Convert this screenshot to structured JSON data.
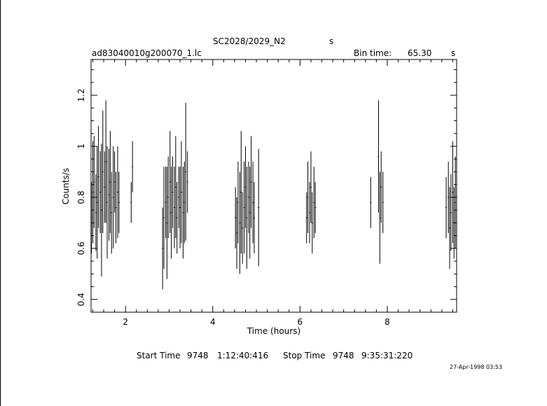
{
  "header": {
    "target_name": "SC2028/2029_N2",
    "target_unit": "s",
    "file_name": "ad83040010g200070_1.lc",
    "bin_time_label": "Bin time:",
    "bin_time_value": "65.30",
    "bin_time_unit": "s"
  },
  "footer": {
    "start_label": "Start Time",
    "start_day": "9748",
    "start_time": "1:12:40:416",
    "stop_label": "Stop Time",
    "stop_day": "9748",
    "stop_time": "9:35:31:220",
    "date_stamp": "27-Apr-1998 03:53"
  },
  "chart_data": {
    "type": "scatter",
    "xlabel": "Time (hours)",
    "ylabel": "Counts/s",
    "xlim": [
      1.21,
      9.59
    ],
    "ylim": [
      0.35,
      1.34
    ],
    "xticks": [
      2,
      4,
      6,
      8
    ],
    "yticks": [
      0.4,
      0.6,
      0.8,
      1,
      1.2
    ],
    "series": [
      {
        "x": [
          1.22,
          1.25,
          1.28,
          1.32,
          1.35,
          1.38,
          1.42,
          1.45,
          1.48,
          1.52,
          1.55,
          1.58,
          1.62,
          1.65,
          1.68,
          1.72,
          1.75,
          1.78,
          1.82,
          1.85,
          2.13,
          2.16,
          2.85,
          2.88,
          2.92,
          2.95,
          2.98,
          3.02,
          3.05,
          3.08,
          3.12,
          3.15,
          3.18,
          3.22,
          3.25,
          3.28,
          3.32,
          3.35,
          3.38,
          3.42,
          4.52,
          4.55,
          4.58,
          4.62,
          4.65,
          4.68,
          4.72,
          4.75,
          4.78,
          4.82,
          4.85,
          4.88,
          4.92,
          4.95,
          5.05,
          6.15,
          6.18,
          6.22,
          6.25,
          6.28,
          6.32,
          6.35,
          7.62,
          7.8,
          7.83,
          7.86,
          7.9,
          9.35,
          9.4,
          9.43,
          9.46,
          9.5,
          9.53,
          9.56
        ],
        "y": [
          0.72,
          0.82,
          0.86,
          0.74,
          0.78,
          0.88,
          0.82,
          0.75,
          0.9,
          0.84,
          0.94,
          0.78,
          0.81,
          0.86,
          0.74,
          0.8,
          0.86,
          0.76,
          0.82,
          0.78,
          0.78,
          0.92,
          0.6,
          0.72,
          0.78,
          0.7,
          0.8,
          0.86,
          0.74,
          0.82,
          0.76,
          0.84,
          0.72,
          0.8,
          0.76,
          0.82,
          0.74,
          0.78,
          0.9,
          0.86,
          0.72,
          0.66,
          0.78,
          0.7,
          0.82,
          0.68,
          0.76,
          0.84,
          0.72,
          0.8,
          0.74,
          0.86,
          0.78,
          0.72,
          0.76,
          0.72,
          0.8,
          0.74,
          0.84,
          0.7,
          0.78,
          0.76,
          0.78,
          0.96,
          0.72,
          0.84,
          0.78,
          0.76,
          0.8,
          0.68,
          0.74,
          0.82,
          0.7,
          0.78
        ],
        "err": [
          0.14,
          0.2,
          0.18,
          0.15,
          0.22,
          0.2,
          0.16,
          0.26,
          0.24,
          0.14,
          0.24,
          0.22,
          0.18,
          0.2,
          0.16,
          0.2,
          0.12,
          0.14,
          0.18,
          0.12,
          0.08,
          0.1,
          0.16,
          0.2,
          0.14,
          0.22,
          0.16,
          0.2,
          0.18,
          0.14,
          0.16,
          0.2,
          0.14,
          0.12,
          0.16,
          0.2,
          0.18,
          0.16,
          0.27,
          0.12,
          0.12,
          0.14,
          0.16,
          0.2,
          0.24,
          0.14,
          0.18,
          0.16,
          0.2,
          0.14,
          0.18,
          0.18,
          0.16,
          0.14,
          0.23,
          0.1,
          0.14,
          0.12,
          0.14,
          0.12,
          0.14,
          0.1,
          0.1,
          0.22,
          0.18,
          0.14,
          0.12,
          0.12,
          0.14,
          0.16,
          0.15,
          0.2,
          0.14,
          0.18
        ]
      }
    ]
  }
}
